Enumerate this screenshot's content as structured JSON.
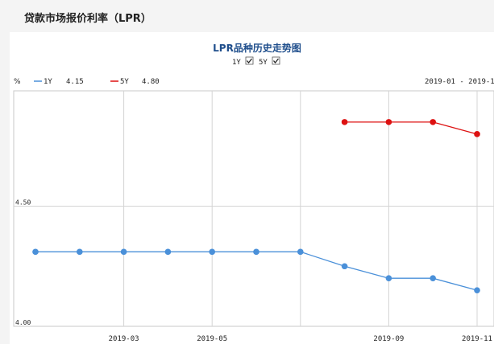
{
  "page": {
    "title": "贷款市场报价利率（LPR）"
  },
  "toggles": [
    {
      "label": "1Y",
      "checked": true
    },
    {
      "label": "5Y",
      "checked": true
    }
  ],
  "legend": [
    {
      "name": "1Y",
      "value": "4.15",
      "color": "#4a90d9"
    },
    {
      "name": "5Y",
      "value": "4.80",
      "color": "#dd1111"
    }
  ],
  "date_range": "2019-01 - 2019-1",
  "chart_data": {
    "type": "line",
    "title": "LPR品种历史走势图",
    "ylabel": "%",
    "ylim": [
      4.0,
      4.98
    ],
    "y_ticks": [
      "4.50",
      "4.00"
    ],
    "x_tick_labels": [
      "2019-03",
      "2019-05",
      "2019-09",
      "2019-11"
    ],
    "grid": true,
    "legend_position": "top-left",
    "series": [
      {
        "name": "1Y",
        "color": "#4a90d9",
        "x": [
          "2019-01",
          "2019-02",
          "2019-03",
          "2019-04",
          "2019-05",
          "2019-06",
          "2019-07",
          "2019-08",
          "2019-09",
          "2019-10",
          "2019-11"
        ],
        "values": [
          4.31,
          4.31,
          4.31,
          4.31,
          4.31,
          4.31,
          4.31,
          4.25,
          4.2,
          4.2,
          4.15
        ]
      },
      {
        "name": "5Y",
        "color": "#dd1111",
        "x": [
          "2019-08",
          "2019-09",
          "2019-10",
          "2019-11"
        ],
        "values": [
          4.85,
          4.85,
          4.85,
          4.8
        ]
      }
    ]
  }
}
